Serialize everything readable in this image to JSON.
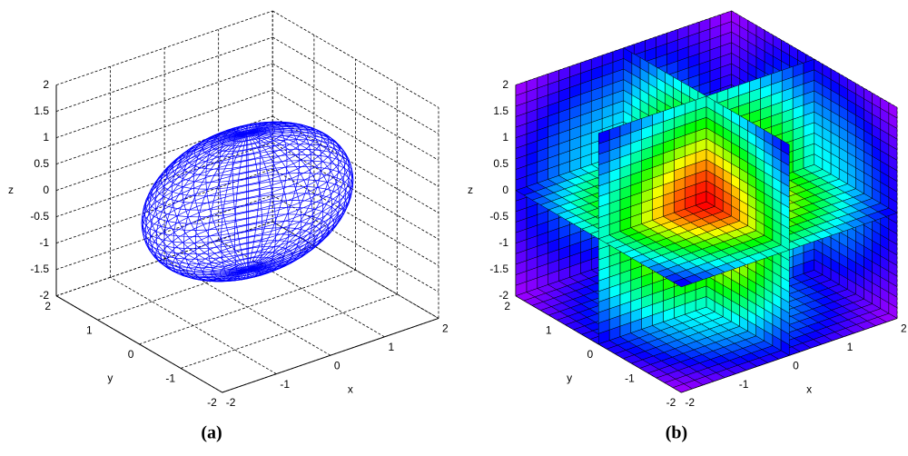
{
  "chart_data": [
    {
      "type": "ellipsoid",
      "caption": "(a)",
      "xlabel": "x",
      "ylabel": "y",
      "zlabel": "z",
      "xlim": [
        -2,
        2
      ],
      "ylim": [
        -2,
        2
      ],
      "zlim": [
        -2,
        2
      ],
      "xticks": [
        -2,
        -1,
        0,
        1,
        2
      ],
      "yticks": [
        -2,
        -1,
        0,
        1,
        2
      ],
      "zticks": [
        -2,
        -1.5,
        -1,
        -0.5,
        0,
        0.5,
        1,
        1.5,
        2
      ],
      "radii": [
        1.8,
        1,
        1.3
      ],
      "color": "#0000ff",
      "grid": true
    },
    {
      "type": "slice",
      "caption": "(b)",
      "xlabel": "x",
      "ylabel": "y",
      "zlabel": "z",
      "xlim": [
        -2,
        2
      ],
      "ylim": [
        -2,
        2
      ],
      "zlim": [
        -2,
        2
      ],
      "xticks": [
        -2,
        -1,
        0,
        1,
        2
      ],
      "yticks": [
        -2,
        -1,
        0,
        1,
        2
      ],
      "zticks": [
        -2,
        -1.5,
        -1,
        -0.5,
        0,
        0.5,
        1,
        1.5,
        2
      ],
      "xslice": [
        0,
        2
      ],
      "yslice": [
        0,
        2
      ],
      "zslice": [
        -2,
        0
      ],
      "grid": true
    }
  ]
}
